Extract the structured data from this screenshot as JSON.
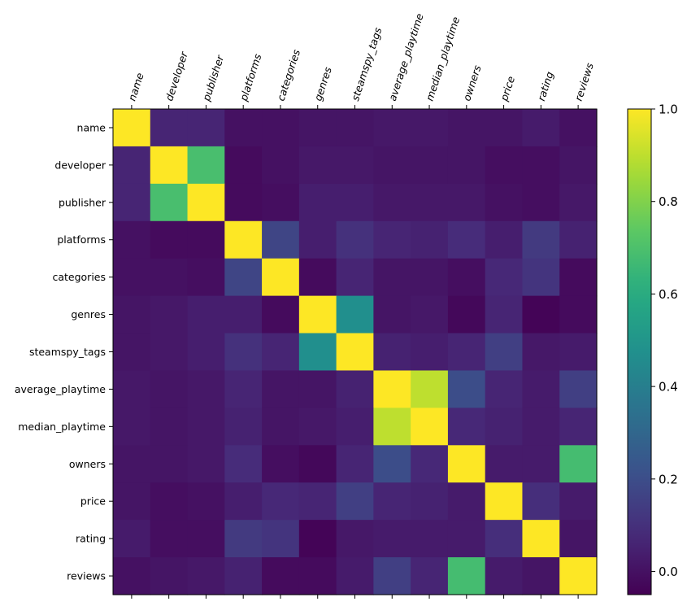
{
  "chart_data": {
    "type": "heatmap",
    "title": "",
    "xlabel": "",
    "ylabel": "",
    "labels": [
      "name",
      "developer",
      "publisher",
      "platforms",
      "categories",
      "genres",
      "steamspy_tags",
      "average_playtime",
      "median_playtime",
      "owners",
      "price",
      "rating",
      "reviews"
    ],
    "values": [
      [
        1.0,
        0.06,
        0.06,
        0.0,
        0.0,
        0.01,
        0.01,
        0.02,
        0.02,
        0.01,
        0.01,
        0.03,
        0.0
      ],
      [
        0.06,
        1.0,
        0.69,
        -0.02,
        0.0,
        0.02,
        0.02,
        0.01,
        0.01,
        0.01,
        -0.01,
        -0.01,
        0.01
      ],
      [
        0.06,
        0.69,
        1.0,
        -0.02,
        -0.01,
        0.04,
        0.04,
        0.02,
        0.02,
        0.02,
        0.0,
        -0.01,
        0.02
      ],
      [
        0.0,
        -0.02,
        -0.02,
        1.0,
        0.17,
        0.04,
        0.1,
        0.06,
        0.05,
        0.08,
        0.04,
        0.13,
        0.05
      ],
      [
        0.0,
        0.0,
        -0.01,
        0.17,
        1.0,
        -0.02,
        0.06,
        0.01,
        0.01,
        -0.01,
        0.07,
        0.11,
        -0.02
      ],
      [
        0.01,
        0.02,
        0.04,
        0.04,
        -0.02,
        1.0,
        0.47,
        0.01,
        0.02,
        -0.03,
        0.06,
        -0.04,
        -0.02
      ],
      [
        0.01,
        0.02,
        0.04,
        0.1,
        0.06,
        0.47,
        1.0,
        0.05,
        0.04,
        0.06,
        0.15,
        0.02,
        0.03
      ],
      [
        0.02,
        0.01,
        0.02,
        0.06,
        0.01,
        0.01,
        0.05,
        1.0,
        0.9,
        0.2,
        0.06,
        0.03,
        0.15
      ],
      [
        0.02,
        0.01,
        0.02,
        0.05,
        0.01,
        0.02,
        0.04,
        0.9,
        1.0,
        0.07,
        0.05,
        0.03,
        0.06
      ],
      [
        0.01,
        0.01,
        0.02,
        0.08,
        -0.01,
        -0.03,
        0.06,
        0.2,
        0.07,
        1.0,
        0.03,
        0.03,
        0.68
      ],
      [
        0.01,
        -0.01,
        0.0,
        0.04,
        0.07,
        0.06,
        0.15,
        0.06,
        0.05,
        0.03,
        1.0,
        0.09,
        0.03
      ],
      [
        0.03,
        -0.01,
        -0.01,
        0.13,
        0.11,
        -0.04,
        0.02,
        0.03,
        0.03,
        0.03,
        0.09,
        1.0,
        0.01
      ],
      [
        0.0,
        0.01,
        0.02,
        0.05,
        -0.02,
        -0.02,
        0.03,
        0.15,
        0.06,
        0.68,
        0.03,
        0.01,
        1.0
      ]
    ],
    "vmin": -0.05,
    "vmax": 1.0,
    "colormap": "viridis",
    "colorbar_ticks": [
      "0.0",
      "0.2",
      "0.4",
      "0.6",
      "0.8",
      "1.0"
    ],
    "colorbar_tick_values": [
      0.0,
      0.2,
      0.4,
      0.6,
      0.8,
      1.0
    ]
  }
}
